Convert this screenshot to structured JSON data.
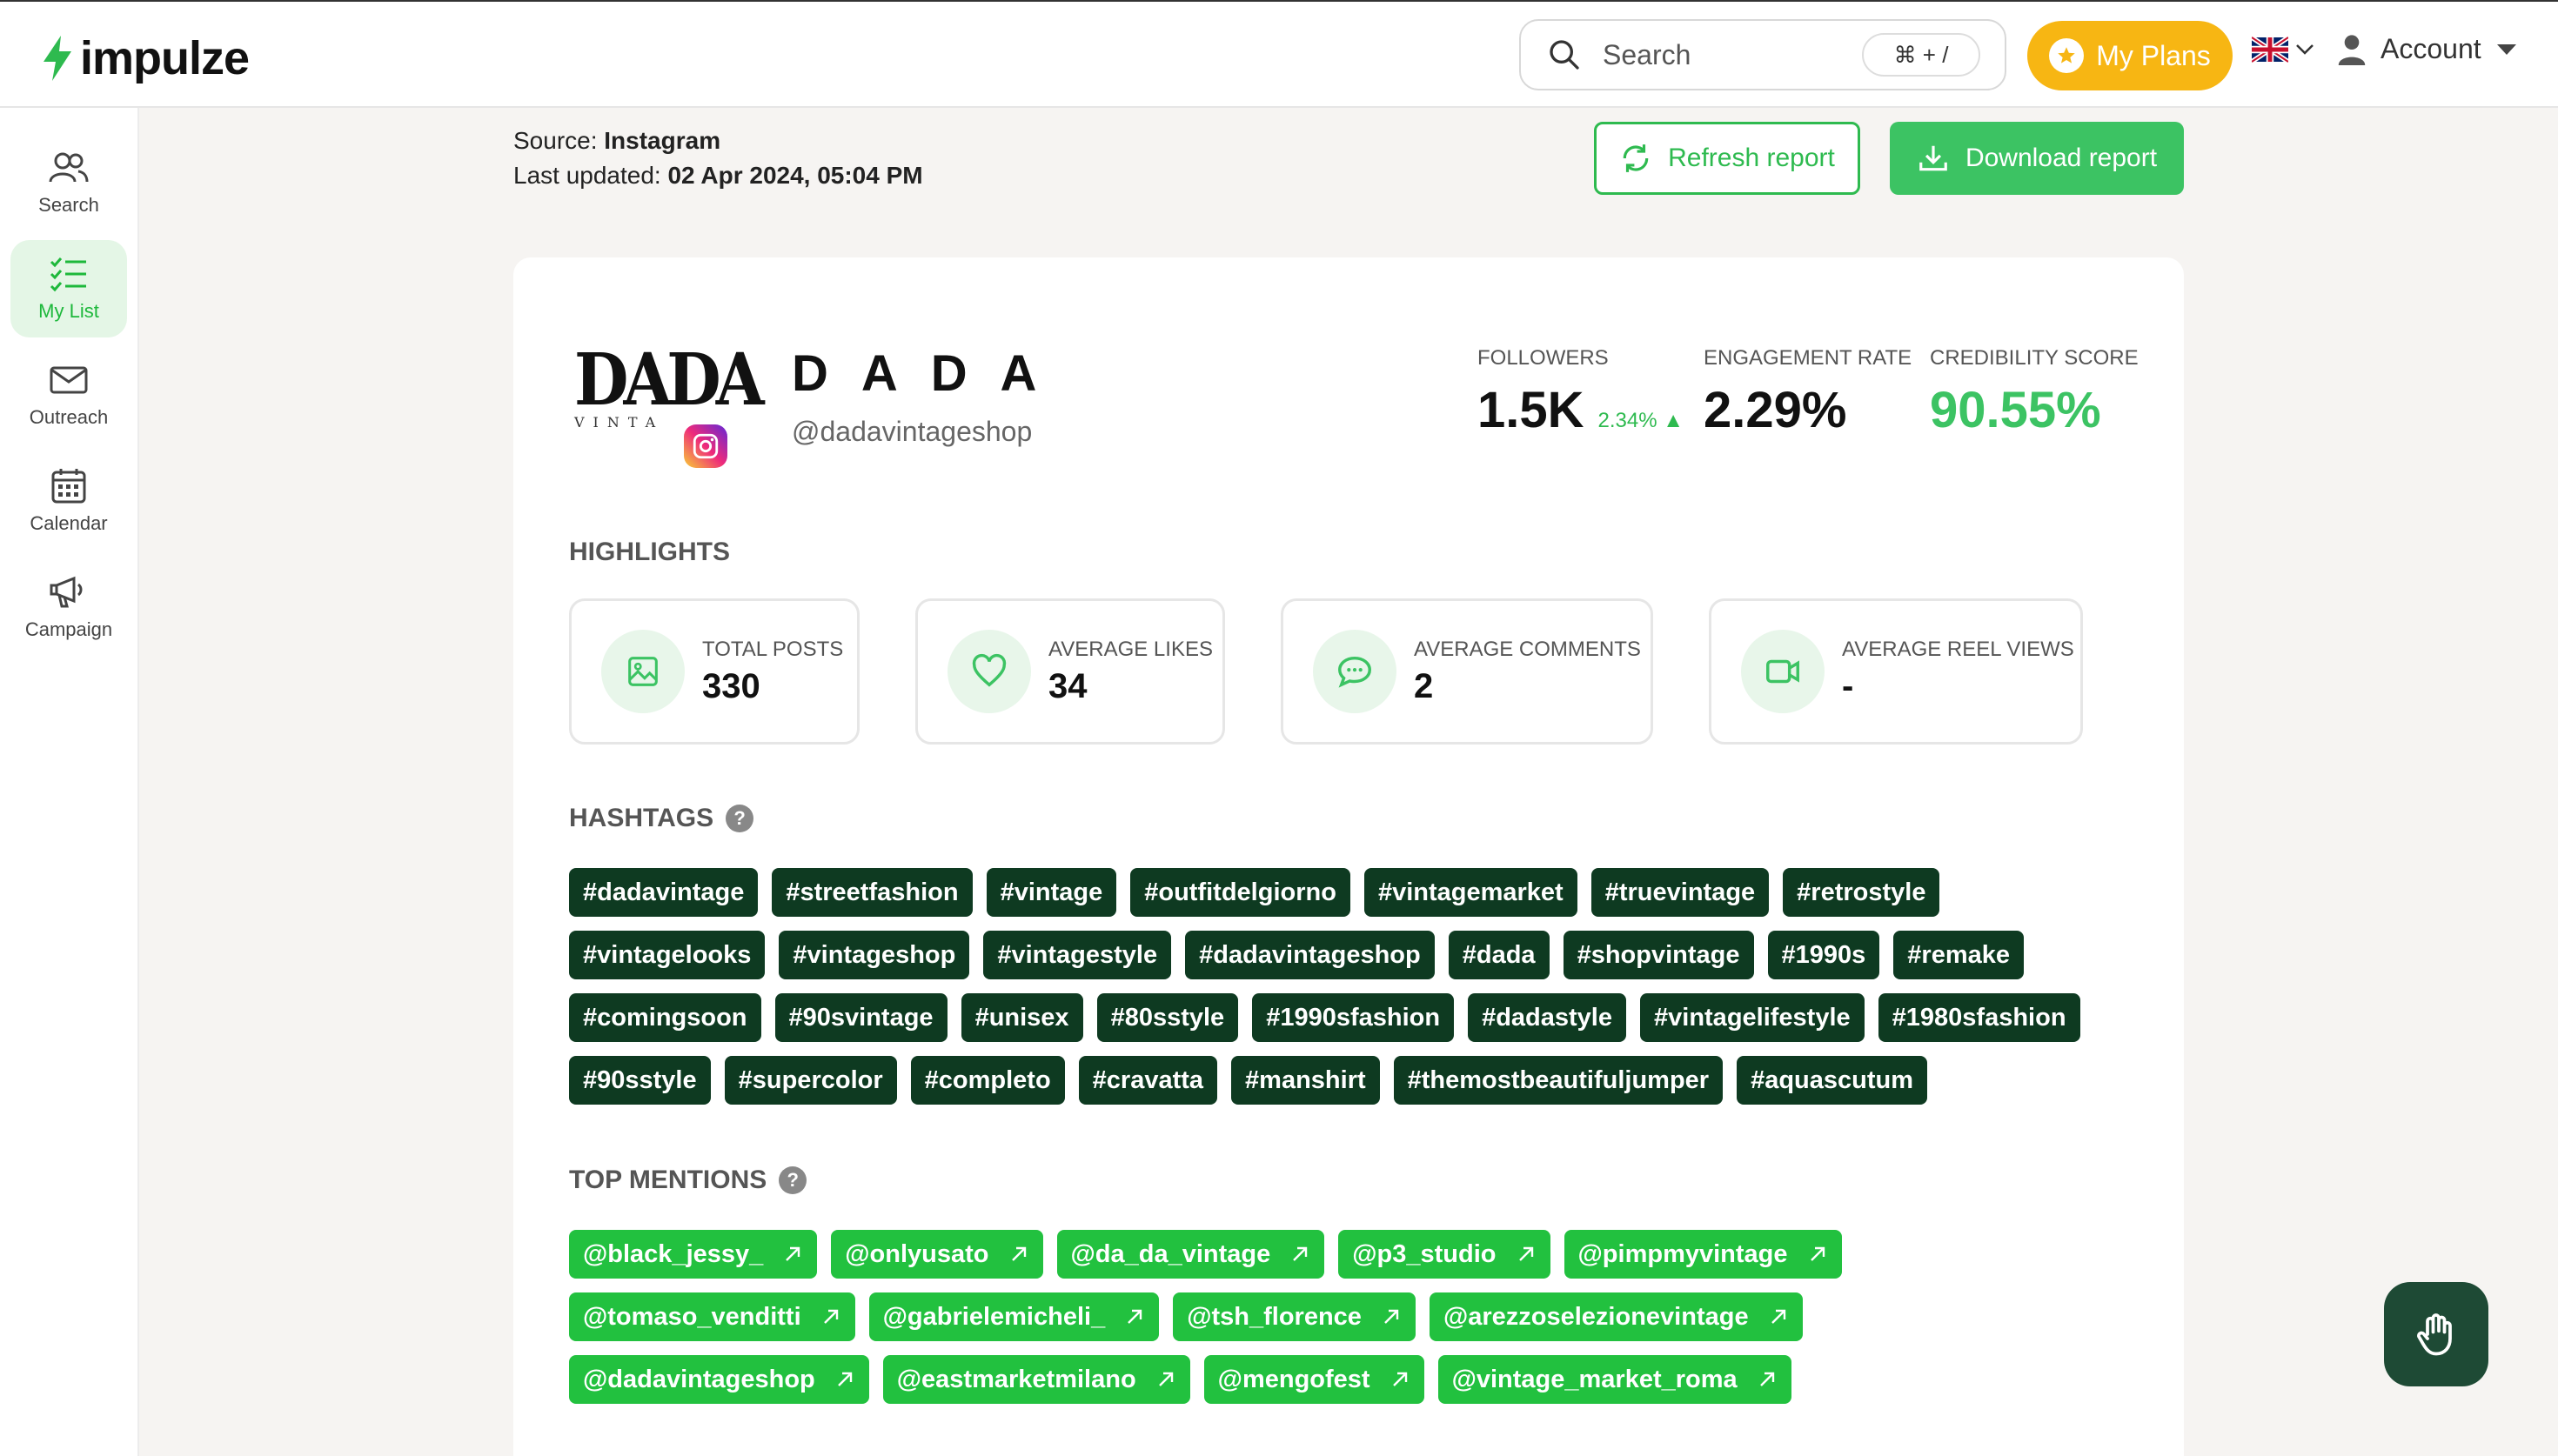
{
  "app": {
    "name": "impulze"
  },
  "header": {
    "search_placeholder": "Search",
    "shortcut": "⌘ + /",
    "plans_label": "My Plans",
    "account_label": "Account"
  },
  "sidebar": {
    "items": [
      {
        "label": "Search",
        "icon": "users-icon"
      },
      {
        "label": "My List",
        "icon": "checklist-icon"
      },
      {
        "label": "Outreach",
        "icon": "mail-icon"
      },
      {
        "label": "Calendar",
        "icon": "calendar-icon"
      },
      {
        "label": "Campaign",
        "icon": "megaphone-icon"
      }
    ]
  },
  "report": {
    "source_label": "Source:",
    "source": "Instagram",
    "updated_label": "Last updated:",
    "updated": "02 Apr 2024, 05:04 PM",
    "refresh_label": "Refresh report",
    "download_label": "Download report"
  },
  "profile": {
    "logo_text": "DADA",
    "logo_sub": "VINTA",
    "name": "D A D A",
    "handle": "@dadavintageshop",
    "followers_label": "FOLLOWERS",
    "followers": "1.5K",
    "followers_change": "2.34% ▲",
    "engagement_label": "ENGAGEMENT RATE",
    "engagement": "2.29%",
    "credibility_label": "CREDIBILITY SCORE",
    "credibility": "90.55%"
  },
  "highlights": {
    "title": "HIGHLIGHTS",
    "items": [
      {
        "label": "TOTAL POSTS",
        "value": "330"
      },
      {
        "label": "AVERAGE LIKES",
        "value": "34"
      },
      {
        "label": "AVERAGE COMMENTS",
        "value": "2"
      },
      {
        "label": "AVERAGE REEL VIEWS",
        "value": "-"
      }
    ]
  },
  "hashtags": {
    "title": "HASHTAGS",
    "items": [
      "#dadavintage",
      "#streetfashion",
      "#vintage",
      "#outfitdelgiorno",
      "#vintagemarket",
      "#truevintage",
      "#retrostyle",
      "#vintagelooks",
      "#vintageshop",
      "#vintagestyle",
      "#dadavintageshop",
      "#dada",
      "#shopvintage",
      "#1990s",
      "#remake",
      "#comingsoon",
      "#90svintage",
      "#unisex",
      "#80sstyle",
      "#1990sfashion",
      "#dadastyle",
      "#vintagelifestyle",
      "#1980sfashion",
      "#90sstyle",
      "#supercolor",
      "#completo",
      "#cravatta",
      "#manshirt",
      "#themostbeautifuljumper",
      "#aquascutum"
    ]
  },
  "mentions": {
    "title": "TOP MENTIONS",
    "items": [
      "@black_jessy_",
      "@onlyusato",
      "@da_da_vintage",
      "@p3_studio",
      "@pimpmyvintage",
      "@tomaso_venditti",
      "@gabrielemicheli_",
      "@tsh_florence",
      "@arezzoselezionevintage",
      "@dadavintageshop",
      "@eastmarketmilano",
      "@mengofest",
      "@vintage_market_roma"
    ]
  },
  "colors": {
    "brand_green": "#3cc363",
    "dark_green": "#0e3a21",
    "plans_yellow": "#f7b613"
  }
}
